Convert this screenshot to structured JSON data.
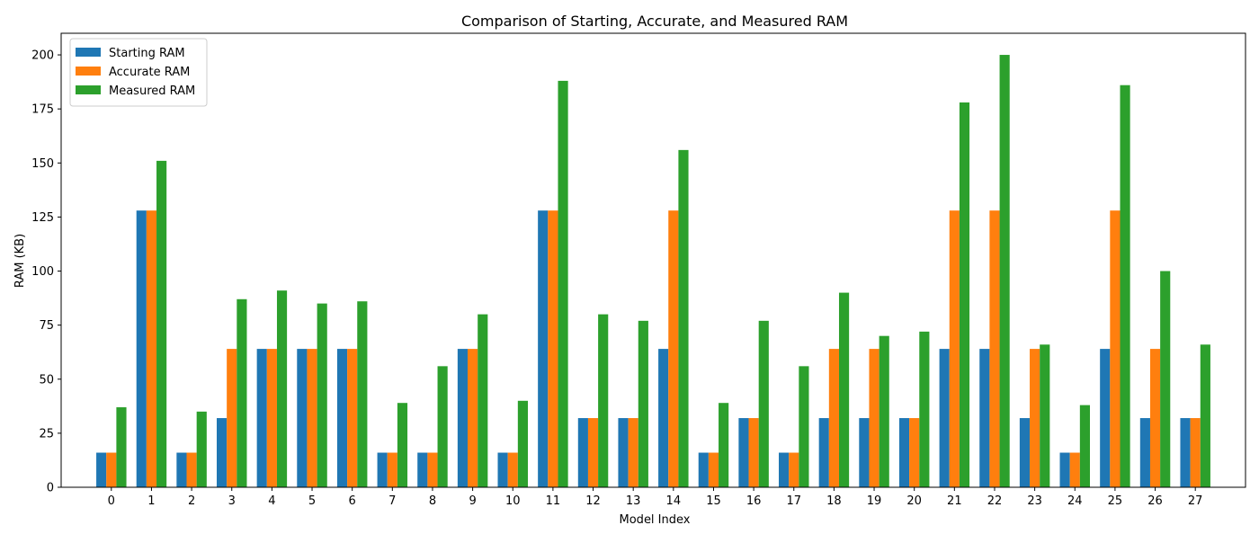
{
  "chart_data": {
    "type": "bar",
    "title": "Comparison of Starting, Accurate, and Measured RAM",
    "xlabel": "Model Index",
    "ylabel": "RAM (KB)",
    "ylim": [
      0,
      210
    ],
    "yticks": [
      0,
      25,
      50,
      75,
      100,
      125,
      150,
      175,
      200
    ],
    "grid": false,
    "legend_position": "top-left",
    "categories": [
      "0",
      "1",
      "2",
      "3",
      "4",
      "5",
      "6",
      "7",
      "8",
      "9",
      "10",
      "11",
      "12",
      "13",
      "14",
      "15",
      "16",
      "17",
      "18",
      "19",
      "20",
      "21",
      "22",
      "23",
      "24",
      "25",
      "26",
      "27"
    ],
    "series": [
      {
        "name": "Starting RAM",
        "color": "#1f77b4",
        "values": [
          16,
          128,
          16,
          32,
          64,
          64,
          64,
          16,
          16,
          64,
          16,
          128,
          32,
          32,
          64,
          16,
          32,
          16,
          32,
          32,
          32,
          64,
          64,
          32,
          16,
          64,
          32,
          32
        ]
      },
      {
        "name": "Accurate RAM",
        "color": "#ff7f0e",
        "values": [
          16,
          128,
          16,
          64,
          64,
          64,
          64,
          16,
          16,
          64,
          16,
          128,
          32,
          32,
          128,
          16,
          32,
          16,
          64,
          64,
          32,
          128,
          128,
          64,
          16,
          128,
          64,
          32
        ]
      },
      {
        "name": "Measured RAM",
        "color": "#2ca02c",
        "values": [
          37,
          151,
          35,
          87,
          91,
          85,
          86,
          39,
          56,
          80,
          40,
          188,
          80,
          77,
          156,
          39,
          77,
          56,
          90,
          70,
          72,
          178,
          200,
          66,
          38,
          186,
          100,
          66
        ]
      }
    ]
  }
}
